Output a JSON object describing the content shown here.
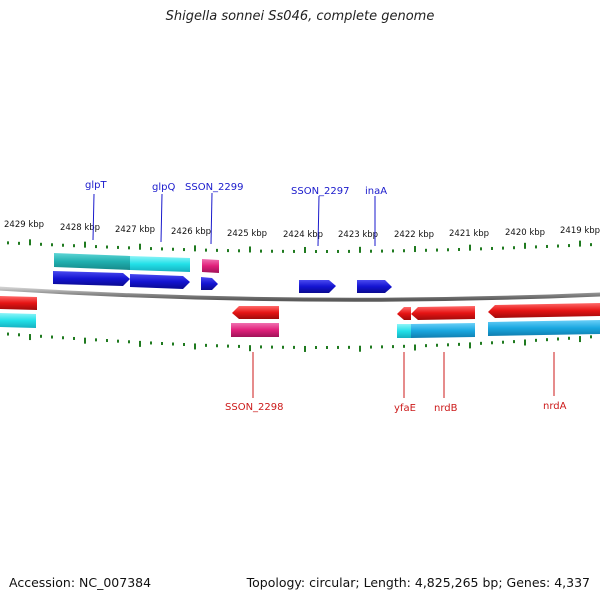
{
  "title": "Shigella sonnei Ss046, complete genome",
  "footer": {
    "accession": "Accession: NC_007384",
    "summary": "Topology: circular; Length: 4,825,265 bp; Genes: 4,337"
  },
  "colors": {
    "backbone": "#8c8c8c",
    "ticks": "#1f7a1f",
    "forward_label": "#1a1acc",
    "reverse_label": "#cc1a1a",
    "blue_cds": "#1414d2",
    "red_cds": "#e61414",
    "teal": "#20b0b0",
    "cyan": "#22e0e8",
    "magenta": "#e0207a",
    "sky": "#1aa8e0"
  },
  "scale": {
    "tick_labels": [
      "2429 kbp",
      "2428 kbp",
      "2427 kbp",
      "2426 kbp",
      "2425 kbp",
      "2424 kbp",
      "2423 kbp",
      "2422 kbp",
      "2421 kbp",
      "2420 kbp",
      "2419 kbp"
    ]
  },
  "forward_labels": [
    "glpT",
    "glpQ",
    "SSON_2299",
    "SSON_2297",
    "inaA"
  ],
  "reverse_labels": [
    "SSON_2298",
    "yfaE",
    "nrdB",
    "nrdA"
  ]
}
